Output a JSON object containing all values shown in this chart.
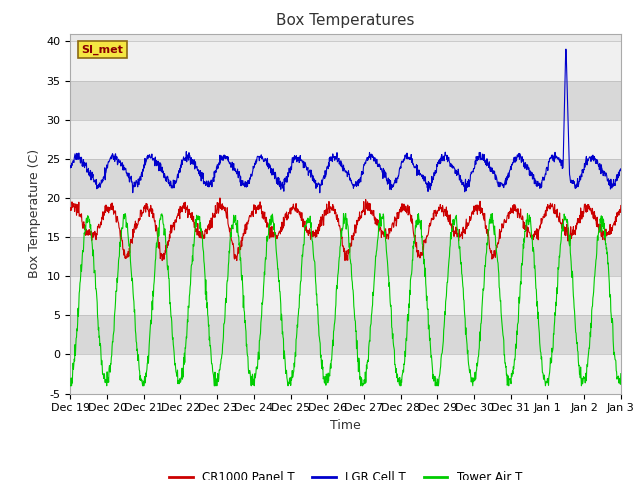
{
  "title": "Box Temperatures",
  "xlabel": "Time",
  "ylabel": "Box Temperature (C)",
  "ylim": [
    -5,
    41
  ],
  "yticks": [
    -5,
    0,
    5,
    10,
    15,
    20,
    25,
    30,
    35,
    40
  ],
  "x_labels": [
    "Dec 19",
    "Dec 20",
    "Dec 21",
    "Dec 22",
    "Dec 23",
    "Dec 24",
    "Dec 25",
    "Dec 26",
    "Dec 27",
    "Dec 28",
    "Dec 29",
    "Dec 30",
    "Dec 31",
    "Jan 1",
    "Jan 2",
    "Jan 3"
  ],
  "label_box": "SI_met",
  "legend": [
    "CR1000 Panel T",
    "LGR Cell T",
    "Tower Air T"
  ],
  "line_colors": [
    "#cc0000",
    "#0000cc",
    "#00cc00"
  ],
  "title_fontsize": 11,
  "axis_fontsize": 9,
  "tick_fontsize": 8,
  "band_light": "#f0f0f0",
  "band_dark": "#d8d8d8",
  "fig_bg": "#ffffff",
  "plot_bg": "#e8e8e8"
}
